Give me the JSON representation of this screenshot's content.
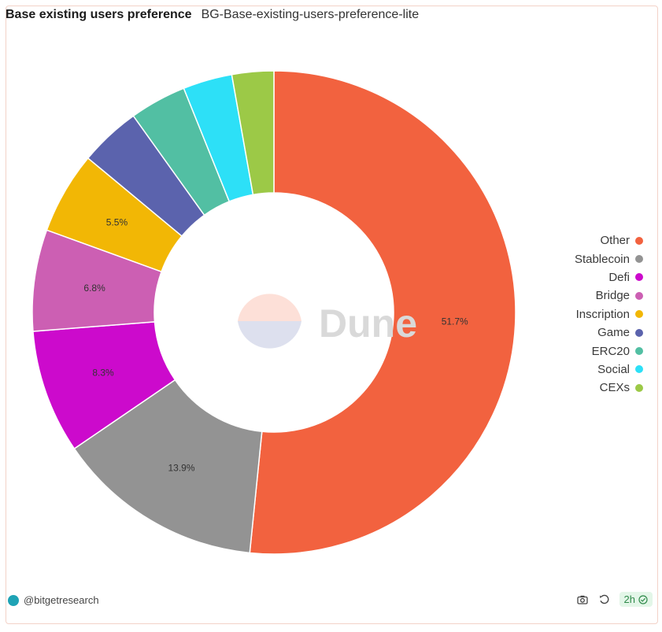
{
  "header": {
    "title": "Base existing users preference",
    "subtitle": "BG-Base-existing-users-preference-lite"
  },
  "chart_data": {
    "type": "pie",
    "categories": [
      "Other",
      "Stablecoin",
      "Defi",
      "Bridge",
      "Inscription",
      "Game",
      "ERC20",
      "Social",
      "CEXs"
    ],
    "values": [
      51.7,
      13.9,
      8.3,
      6.8,
      5.5,
      4.1,
      3.8,
      3.3,
      2.8
    ],
    "value_labels": [
      "51.7%",
      "13.9%",
      "8.3%",
      "6.8%",
      "5.5%",
      "",
      "",
      "",
      ""
    ],
    "colors": [
      "#f2623f",
      "#939393",
      "#cc0acc",
      "#cc5fb3",
      "#f2b705",
      "#5b63ad",
      "#52bfa3",
      "#2de0f7",
      "#9cc947"
    ],
    "legend_position": "right",
    "donut": true
  },
  "watermark": {
    "text": "Dune"
  },
  "footer": {
    "author": "@bitgetresearch",
    "freshness": "2h",
    "icons": [
      "camera-icon",
      "refresh-icon",
      "check-circle-icon"
    ]
  }
}
